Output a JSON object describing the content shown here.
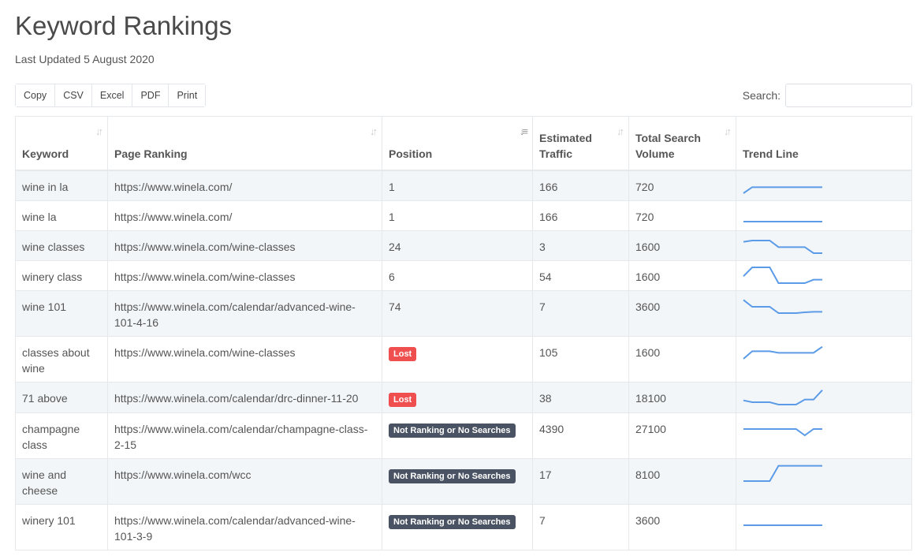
{
  "title": "Keyword Rankings",
  "last_updated": "Last Updated 5 August 2020",
  "export_buttons": [
    "Copy",
    "CSV",
    "Excel",
    "PDF",
    "Print"
  ],
  "search": {
    "label": "Search:",
    "value": "",
    "placeholder": ""
  },
  "columns": [
    "Keyword",
    "Page Ranking",
    "Position",
    "Estimated Traffic",
    "Total Search Volume",
    "Trend Line"
  ],
  "sort_active_column": "Position",
  "colors": {
    "trend_line": "#5b9be8",
    "lost_badge": "#ef4f4f",
    "not_ranking_badge": "#4a5363"
  },
  "rows": [
    {
      "keyword": "wine in la",
      "page": "https://www.winela.com/",
      "position": "1",
      "traffic": "166",
      "volume": "720",
      "trend": [
        0,
        23,
        23,
        23,
        23,
        23,
        23,
        23,
        23,
        23
      ]
    },
    {
      "keyword": "wine la",
      "page": "https://www.winela.com/",
      "position": "1",
      "traffic": "166",
      "volume": "720",
      "trend": [
        0,
        0,
        0,
        0,
        0,
        0,
        0,
        0,
        0,
        0
      ]
    },
    {
      "keyword": "wine classes",
      "page": "https://www.winela.com/wine-classes",
      "position": "24",
      "traffic": "3",
      "volume": "1600",
      "trend": [
        43,
        48,
        48,
        48,
        23,
        23,
        23,
        23,
        0,
        0
      ]
    },
    {
      "keyword": "winery class",
      "page": "https://www.winela.com/wine-classes",
      "position": "6",
      "traffic": "54",
      "volume": "1600",
      "trend": [
        26,
        60,
        60,
        60,
        0,
        0,
        0,
        0,
        13,
        13
      ]
    },
    {
      "keyword": "wine 101",
      "page": "https://www.winela.com/calendar/advanced-wine-101-4-16",
      "position": "74",
      "traffic": "7",
      "volume": "3600",
      "trend": [
        50,
        24,
        24,
        24,
        0,
        0,
        0,
        3,
        5,
        5
      ]
    },
    {
      "keyword": "classes about wine",
      "page": "https://www.winela.com/wine-classes",
      "position": "Lost",
      "badge": "lost",
      "traffic": "105",
      "volume": "1600",
      "trend": [
        0,
        29,
        29,
        29,
        23,
        23,
        23,
        23,
        23,
        46
      ]
    },
    {
      "keyword": "71 above",
      "page": "https://www.winela.com/calendar/drc-dinner-11-20",
      "position": "Lost",
      "badge": "lost",
      "traffic": "38",
      "volume": "18100",
      "trend": [
        16,
        9,
        9,
        9,
        0,
        0,
        0,
        19,
        19,
        55
      ]
    },
    {
      "keyword": "champagne class",
      "page": "https://www.winela.com/calendar/champagne-class-2-15",
      "position": "Not Ranking or No Searches",
      "badge": "nr",
      "traffic": "4390",
      "volume": "27100",
      "trend": [
        24,
        24,
        24,
        24,
        24,
        24,
        24,
        0,
        24,
        24
      ]
    },
    {
      "keyword": "wine and cheese",
      "page": "https://www.winela.com/wcc",
      "position": "Not Ranking or No Searches",
      "badge": "nr",
      "traffic": "17",
      "volume": "8100",
      "trend": [
        0,
        0,
        0,
        0,
        58,
        58,
        58,
        58,
        58,
        58
      ]
    },
    {
      "keyword": "winery 101",
      "page": "https://www.winela.com/calendar/advanced-wine-101-3-9",
      "position": "Not Ranking or No Searches",
      "badge": "nr",
      "traffic": "7",
      "volume": "3600",
      "trend": [
        0,
        0,
        0,
        0,
        0,
        0,
        0,
        0,
        0,
        0
      ]
    }
  ]
}
